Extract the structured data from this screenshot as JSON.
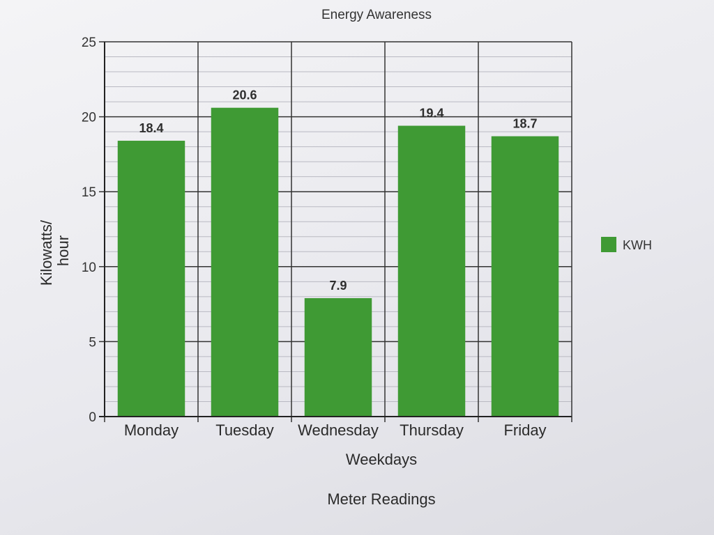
{
  "chart_data": {
    "type": "bar",
    "title": "Energy Awareness",
    "caption": "Meter Readings",
    "xlabel": "Weekdays",
    "ylabel": "Kilowatts/ hour",
    "ylabel_lines": [
      "Kilowatts/",
      "hour"
    ],
    "categories": [
      "Monday",
      "Tuesday",
      "Wednesday",
      "Thursday",
      "Friday"
    ],
    "series": [
      {
        "name": "KWH",
        "values": [
          18.4,
          20.6,
          7.9,
          19.4,
          18.7
        ]
      }
    ],
    "data_labels": [
      "18.4",
      "20.6",
      "7.9",
      "19.4",
      "18.7"
    ],
    "ylim": [
      0,
      25
    ],
    "yticks": [
      0,
      5,
      10,
      15,
      20,
      25
    ],
    "grid": true,
    "legend_position": "right",
    "colors": {
      "bar": "#3f9a34",
      "grid": "#333333",
      "minor_grid": "#b9b9c2"
    }
  }
}
